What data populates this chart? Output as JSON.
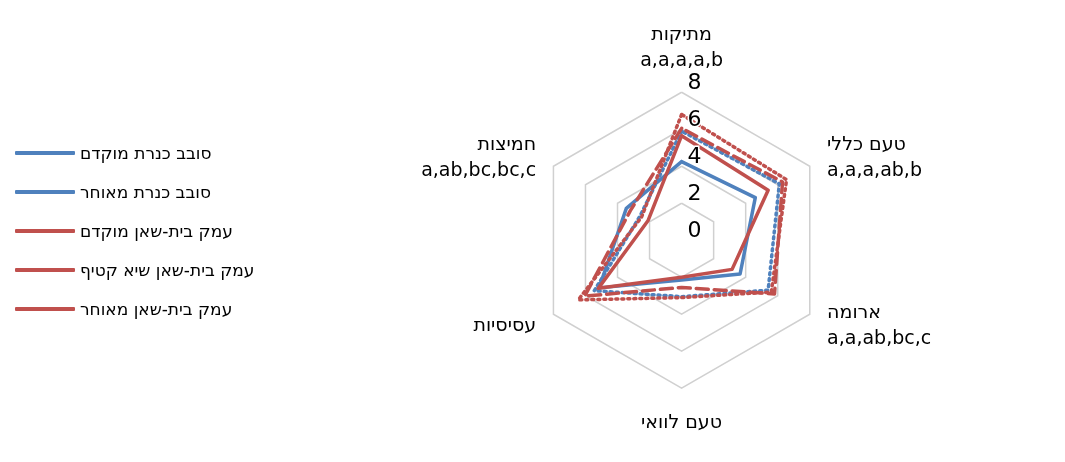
{
  "chart_data": {
    "type": "radar",
    "categories": [
      "מתיקות\na,a,a,a,b",
      "טעם כללי\na,a,a,ab,b",
      "ארומה\na,a,ab,bc,c",
      "טעם לוואי",
      "עסיסיות",
      "חמיצות\na,ab,bc,bc,c"
    ],
    "series": [
      {
        "name": "סובב כנרת מוקדם",
        "color": "#4f81bd",
        "line_style": "solid",
        "values": [
          4.25,
          4.6,
          3.65,
          2.15,
          5.15,
          3.45
        ]
      },
      {
        "name": "סובב כנרת מאוחר",
        "color": "#4f81bd",
        "line_style": "dotted",
        "values": [
          5.9,
          6.1,
          5.4,
          3.05,
          5.45,
          2.6
        ]
      },
      {
        "name": "עמק בית-שאן מוקדם",
        "color": "#c0504d",
        "line_style": "solid",
        "values": [
          5.65,
          5.4,
          3.15,
          2.0,
          5.2,
          2.1
        ]
      },
      {
        "name": "עמק בית-שאן שיא קטיף",
        "color": "#c0504d",
        "line_style": "dashed",
        "values": [
          6.05,
          6.3,
          5.8,
          2.55,
          6.05,
          3.2
        ]
      },
      {
        "name": "עמק בית-שאן מאוחר",
        "color": "#c0504d",
        "line_style": "dotted",
        "values": [
          6.8,
          6.55,
          5.6,
          3.1,
          6.45,
          2.5
        ]
      }
    ],
    "ylim": [
      0,
      8
    ],
    "yticks": [
      0,
      2,
      4,
      6,
      8
    ],
    "grid": true,
    "legend": "left",
    "marker": "none"
  }
}
